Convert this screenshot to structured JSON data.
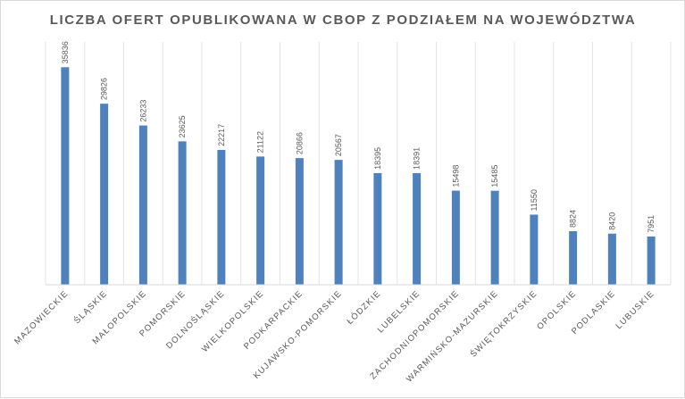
{
  "chart_data": {
    "type": "bar",
    "title": "LICZBA OFERT OPUBLIKOWANA W CBOP Z PODZIAŁEM NA WOJEWÓDZTWA",
    "categories": [
      "MAZOWIECKIE",
      "ŚLĄSKIE",
      "MAŁOPOLSKIE",
      "POMORSKIE",
      "DOLNOŚLĄSKIE",
      "WIELKOPOLSKIE",
      "PODKARPACKIE",
      "KUJAWSKO-POMORSKIE",
      "ŁÓDZKIE",
      "LUBELSKIE",
      "ZACHODNIOPOMORSKIE",
      "WARMIŃSKO-MAZURSKIE",
      "ŚWIĘTOKRZYSKIE",
      "OPOLSKIE",
      "PODLASKIE",
      "LUBUSKIE"
    ],
    "values": [
      35836,
      29826,
      26233,
      23625,
      22217,
      21122,
      20866,
      20567,
      18395,
      18391,
      15498,
      15485,
      11550,
      8824,
      8420,
      7951
    ],
    "ylim": [
      0,
      40000
    ],
    "grid": "vertical category separators",
    "legend": "none",
    "data_labels": "above bars, rotated",
    "bar_color": "#4f81bd"
  }
}
